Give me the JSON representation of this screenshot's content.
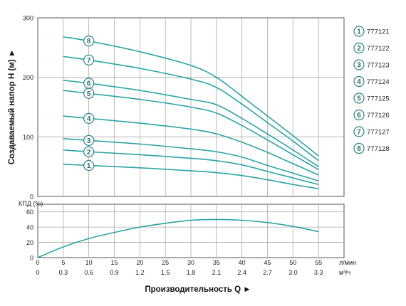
{
  "chart_data": [
    {
      "type": "line",
      "title": "",
      "ylabel": "Создаваемый напор Н (м) ►",
      "xlabel": "",
      "ylim": [
        0,
        300
      ],
      "yticks": [
        0,
        100,
        200,
        300
      ],
      "xlim": [
        0,
        60
      ],
      "xticks": [
        5,
        10,
        15,
        20,
        25,
        30,
        35,
        40,
        45,
        50,
        55
      ],
      "grid": true,
      "legend_position": "right",
      "series": [
        {
          "marker": "1",
          "name": "777121",
          "x": [
            5,
            10,
            20,
            30,
            35,
            40,
            45,
            50,
            55
          ],
          "y": [
            54,
            52,
            48,
            43,
            40,
            35,
            28,
            20,
            13
          ]
        },
        {
          "marker": "2",
          "name": "777122",
          "x": [
            5,
            10,
            20,
            30,
            35,
            40,
            45,
            50,
            55
          ],
          "y": [
            78,
            75,
            70,
            64,
            60,
            53,
            42,
            31,
            20
          ]
        },
        {
          "marker": "3",
          "name": "777123",
          "x": [
            5,
            10,
            20,
            30,
            35,
            40,
            45,
            50,
            55
          ],
          "y": [
            97,
            94,
            88,
            80,
            75,
            66,
            52,
            39,
            26
          ]
        },
        {
          "marker": "4",
          "name": "777124",
          "x": [
            5,
            10,
            20,
            30,
            35,
            40,
            45,
            50,
            55
          ],
          "y": [
            135,
            131,
            123,
            113,
            105,
            91,
            74,
            55,
            36
          ]
        },
        {
          "marker": "5",
          "name": "777125",
          "x": [
            5,
            10,
            20,
            30,
            35,
            40,
            45,
            50,
            55
          ],
          "y": [
            178,
            173,
            163,
            150,
            140,
            119,
            95,
            70,
            45
          ]
        },
        {
          "marker": "6",
          "name": "777126",
          "x": [
            5,
            10,
            20,
            30,
            35,
            40,
            45,
            50,
            55
          ],
          "y": [
            195,
            190,
            178,
            163,
            154,
            131,
            105,
            78,
            50
          ]
        },
        {
          "marker": "7",
          "name": "777127",
          "x": [
            5,
            10,
            20,
            30,
            35,
            40,
            45,
            50,
            55
          ],
          "y": [
            235,
            229,
            215,
            197,
            183,
            155,
            124,
            93,
            60
          ]
        },
        {
          "marker": "8",
          "name": "777128",
          "x": [
            5,
            10,
            20,
            30,
            35,
            40,
            45,
            50,
            55
          ],
          "y": [
            268,
            261,
            243,
            220,
            200,
            168,
            135,
            102,
            68
          ]
        }
      ]
    },
    {
      "type": "line",
      "ylabel": "КПД (%)",
      "ylim": [
        0,
        70
      ],
      "yticks": [
        0,
        20,
        40,
        60
      ],
      "xlim": [
        0,
        60
      ],
      "grid": true,
      "series": [
        {
          "name": "",
          "x": [
            0,
            5,
            10,
            15,
            20,
            25,
            30,
            35,
            40,
            45,
            50,
            55
          ],
          "y": [
            0,
            14,
            25,
            33,
            40,
            45,
            49,
            50,
            49,
            46,
            41,
            34
          ]
        }
      ]
    }
  ],
  "axes": {
    "x_primary_unit": "л/мин",
    "x_primary_labels": [
      "0",
      "5",
      "10",
      "15",
      "20",
      "25",
      "30",
      "35",
      "40",
      "45",
      "50",
      "55"
    ],
    "x_secondary_unit": "м³/ч",
    "x_secondary_labels": [
      "0",
      "0.3",
      "0.6",
      "0.9",
      "1.2",
      "1.5",
      "1.8",
      "2.1",
      "2.4",
      "2.7",
      "3.0",
      "3.3"
    ],
    "x_title": "Производительность Q ►"
  },
  "colors": {
    "curve": "#2aa4a8",
    "grid": "#a8a8a8",
    "axis": "#555555",
    "marker_ring": "#2a8488"
  }
}
